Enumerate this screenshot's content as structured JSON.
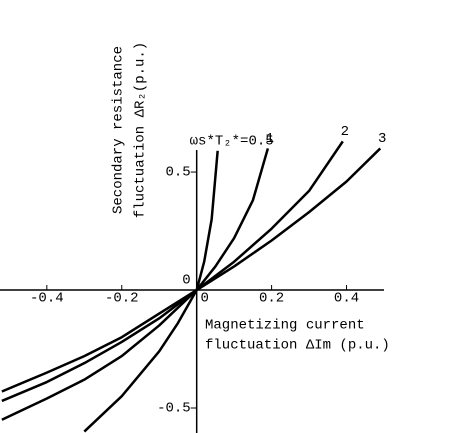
{
  "chart_data": {
    "type": "line",
    "ylabel": [
      "Secondary resistance",
      "fluctuation ΔR₂(p.u.)"
    ],
    "xlabel": [
      "Magnetizing current",
      "fluctuation ΔIm (p.u.)"
    ],
    "xlim": [
      -0.525,
      0.5
    ],
    "ylim": [
      -0.606,
      0.657
    ],
    "xticks": [
      -0.4,
      -0.2,
      0,
      0.2,
      0.4
    ],
    "yticks": [
      -0.5,
      0,
      0.5
    ],
    "series": [
      {
        "name": "ωs*T₂*=0.5",
        "color": "#000000",
        "x": [
          -0.3,
          -0.2,
          -0.1,
          -0.05,
          0,
          0.02,
          0.04,
          0.056
        ],
        "values": [
          -0.6,
          -0.45,
          -0.26,
          -0.14,
          0,
          0.12,
          0.3,
          0.59
        ]
      },
      {
        "name": "1",
        "color": "#000000",
        "x": [
          -0.52,
          -0.4,
          -0.3,
          -0.2,
          -0.1,
          0,
          0.05,
          0.1,
          0.15,
          0.19
        ],
        "values": [
          -0.55,
          -0.46,
          -0.38,
          -0.28,
          -0.15,
          0,
          0.1,
          0.22,
          0.38,
          0.6
        ]
      },
      {
        "name": "2",
        "color": "#000000",
        "x": [
          -0.52,
          -0.4,
          -0.3,
          -0.2,
          -0.1,
          0,
          0.1,
          0.2,
          0.3,
          0.39
        ],
        "values": [
          -0.47,
          -0.39,
          -0.31,
          -0.22,
          -0.12,
          0,
          0.12,
          0.26,
          0.42,
          0.63
        ]
      },
      {
        "name": "3",
        "color": "#000000",
        "x": [
          -0.52,
          -0.4,
          -0.3,
          -0.2,
          -0.1,
          0,
          0.1,
          0.2,
          0.3,
          0.4,
          0.49
        ],
        "values": [
          -0.43,
          -0.35,
          -0.28,
          -0.2,
          -0.1,
          0,
          0.1,
          0.21,
          0.33,
          0.46,
          0.6
        ]
      }
    ]
  }
}
